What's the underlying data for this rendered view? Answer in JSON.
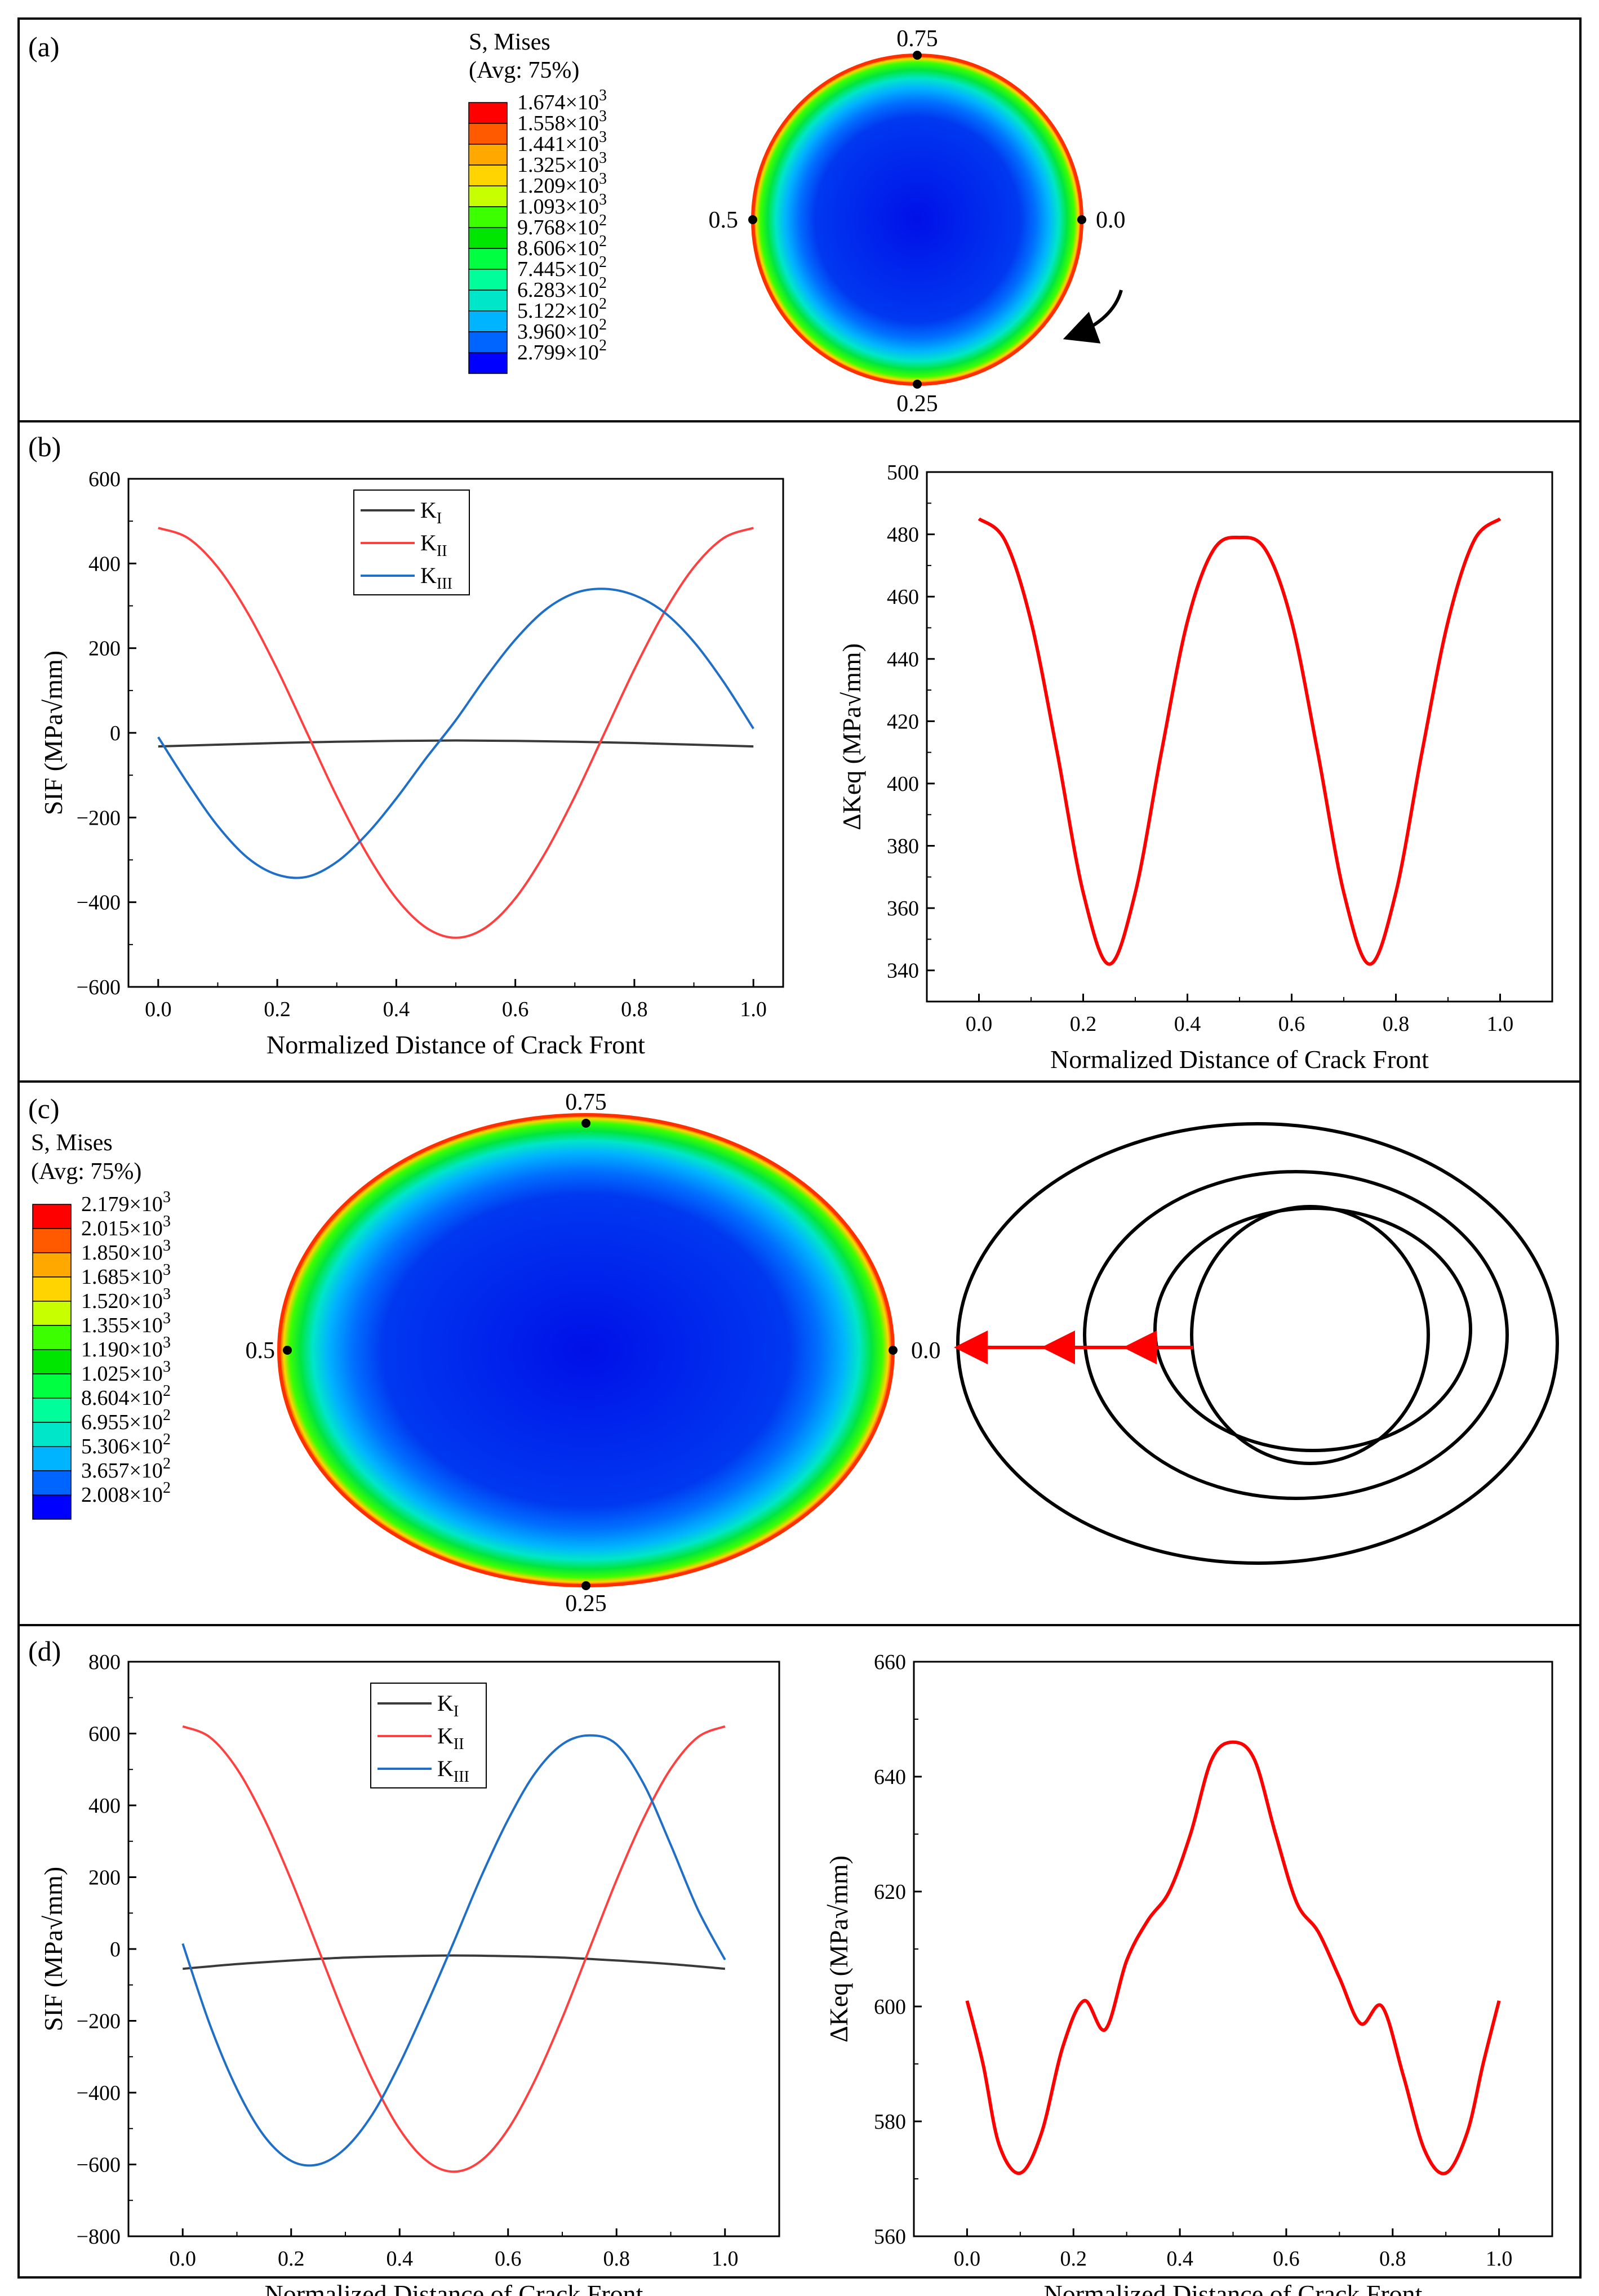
{
  "panels": {
    "a": {
      "label": "(a)",
      "legend_title": [
        "S, Mises",
        "(Avg: 75%)"
      ],
      "legend_colors": [
        "#ff0000",
        "#ff5a00",
        "#ffa800",
        "#ffd400",
        "#c8ff00",
        "#3cff00",
        "#00e600",
        "#00ff40",
        "#00ff9a",
        "#00e6c8",
        "#00b4ff",
        "#0064ff",
        "#0000ff"
      ],
      "legend_values": [
        {
          "m": "1.674",
          "e": "3"
        },
        {
          "m": "1.558",
          "e": "3"
        },
        {
          "m": "1.441",
          "e": "3"
        },
        {
          "m": "1.325",
          "e": "3"
        },
        {
          "m": "1.209",
          "e": "3"
        },
        {
          "m": "1.093",
          "e": "3"
        },
        {
          "m": "9.768",
          "e": "2"
        },
        {
          "m": "8.606",
          "e": "2"
        },
        {
          "m": "7.445",
          "e": "2"
        },
        {
          "m": "6.283",
          "e": "2"
        },
        {
          "m": "5.122",
          "e": "2"
        },
        {
          "m": "3.960",
          "e": "2"
        },
        {
          "m": "2.799",
          "e": "2"
        }
      ],
      "crack_labels": {
        "top": "0.75",
        "left": "0.5",
        "right": "0.0",
        "bottom": "0.25"
      }
    },
    "b": {
      "label": "(b)"
    },
    "c": {
      "label": "(c)",
      "legend_title": [
        "S, Mises",
        "(Avg: 75%)"
      ],
      "legend_colors": [
        "#ff0000",
        "#ff5a00",
        "#ffa800",
        "#ffd400",
        "#c8ff00",
        "#3cff00",
        "#00e600",
        "#00ff40",
        "#00ff9a",
        "#00e6c8",
        "#00b4ff",
        "#0064ff",
        "#0000ff"
      ],
      "legend_values": [
        {
          "m": "2.179",
          "e": "3"
        },
        {
          "m": "2.015",
          "e": "3"
        },
        {
          "m": "1.850",
          "e": "3"
        },
        {
          "m": "1.685",
          "e": "3"
        },
        {
          "m": "1.520",
          "e": "3"
        },
        {
          "m": "1.355",
          "e": "3"
        },
        {
          "m": "1.190",
          "e": "3"
        },
        {
          "m": "1.025",
          "e": "3"
        },
        {
          "m": "8.604",
          "e": "2"
        },
        {
          "m": "6.955",
          "e": "2"
        },
        {
          "m": "5.306",
          "e": "2"
        },
        {
          "m": "3.657",
          "e": "2"
        },
        {
          "m": "2.008",
          "e": "2"
        }
      ],
      "crack_labels": {
        "top": "0.75",
        "left": "0.5",
        "right": "0.0",
        "bottom": "0.25"
      }
    },
    "d": {
      "label": "(d)"
    }
  },
  "chart_data": [
    {
      "id": "b-left",
      "type": "line",
      "xlabel": "Normalized Distance of Crack Front",
      "ylabel": "SIF (MPa√mm)",
      "xlim": [
        -0.05,
        1.05
      ],
      "ylim": [
        -600,
        600
      ],
      "xticks": [
        "0.0",
        "0.2",
        "0.4",
        "0.6",
        "0.8",
        "1.0"
      ],
      "yticks": [
        "-600",
        "-400",
        "-200",
        "0",
        "200",
        "400",
        "600"
      ],
      "series": [
        {
          "name": "KI",
          "sub": "I",
          "color": "#3a3a3a",
          "x": [
            0,
            0.1,
            0.2,
            0.3,
            0.4,
            0.5,
            0.6,
            0.7,
            0.8,
            0.9,
            1.0
          ],
          "y": [
            -32,
            -28,
            -24,
            -21,
            -19,
            -18,
            -19,
            -21,
            -24,
            -28,
            -32
          ]
        },
        {
          "name": "KII",
          "sub": "II",
          "color": "#ff4040",
          "x": [
            0,
            0.05,
            0.1,
            0.15,
            0.2,
            0.25,
            0.3,
            0.35,
            0.4,
            0.45,
            0.5,
            0.55,
            0.6,
            0.65,
            0.7,
            0.75,
            0.8,
            0.85,
            0.9,
            0.95,
            1.0
          ],
          "y": [
            484,
            460,
            391,
            284,
            150,
            0,
            -150,
            -284,
            -391,
            -460,
            -484,
            -460,
            -391,
            -284,
            -150,
            0,
            150,
            284,
            391,
            460,
            484
          ]
        },
        {
          "name": "KIII",
          "sub": "III",
          "color": "#1f6fc8",
          "x": [
            0,
            0.05,
            0.1,
            0.15,
            0.2,
            0.25,
            0.3,
            0.35,
            0.4,
            0.45,
            0.5,
            0.55,
            0.6,
            0.65,
            0.7,
            0.75,
            0.8,
            0.85,
            0.9,
            0.95,
            1.0
          ],
          "y": [
            -10,
            -120,
            -220,
            -295,
            -335,
            -340,
            -305,
            -240,
            -155,
            -60,
            30,
            130,
            220,
            290,
            330,
            340,
            325,
            285,
            215,
            120,
            10
          ]
        }
      ]
    },
    {
      "id": "b-right",
      "type": "line",
      "xlabel": "Normalized Distance of Crack Front",
      "ylabel": "ΔKeq (MPa√mm)",
      "xlim": [
        -0.1,
        1.1
      ],
      "ylim": [
        330,
        500
      ],
      "xticks": [
        "0.0",
        "0.2",
        "0.4",
        "0.6",
        "0.8",
        "1.0"
      ],
      "yticks": [
        "340",
        "360",
        "380",
        "400",
        "420",
        "440",
        "460",
        "480",
        "500"
      ],
      "series": [
        {
          "name": "ΔKeq",
          "color": "#ff0000",
          "x": [
            0,
            0.05,
            0.1,
            0.15,
            0.2,
            0.25,
            0.3,
            0.35,
            0.4,
            0.45,
            0.5,
            0.55,
            0.6,
            0.65,
            0.7,
            0.75,
            0.8,
            0.85,
            0.9,
            0.95,
            1.0
          ],
          "y": [
            485,
            478,
            452,
            410,
            365,
            342,
            365,
            410,
            452,
            475,
            479,
            475,
            452,
            410,
            365,
            342,
            365,
            410,
            452,
            478,
            485
          ]
        }
      ]
    },
    {
      "id": "d-left",
      "type": "line",
      "xlabel": "Normalized Distance of Crack Front",
      "ylabel": "SIF (MPa√mm)",
      "xlim": [
        -0.1,
        1.1
      ],
      "ylim": [
        -800,
        800
      ],
      "xticks": [
        "0.0",
        "0.2",
        "0.4",
        "0.6",
        "0.8",
        "1.0"
      ],
      "yticks": [
        "-800",
        "-600",
        "-400",
        "-200",
        "0",
        "200",
        "400",
        "600",
        "800"
      ],
      "series": [
        {
          "name": "KI",
          "sub": "I",
          "color": "#3a3a3a",
          "x": [
            0,
            0.1,
            0.2,
            0.3,
            0.4,
            0.5,
            0.6,
            0.7,
            0.8,
            0.9,
            1.0
          ],
          "y": [
            -55,
            -42,
            -32,
            -24,
            -20,
            -18,
            -20,
            -24,
            -32,
            -42,
            -55
          ]
        },
        {
          "name": "KII",
          "sub": "II",
          "color": "#ff4040",
          "x": [
            0,
            0.05,
            0.1,
            0.15,
            0.2,
            0.25,
            0.3,
            0.35,
            0.4,
            0.45,
            0.5,
            0.55,
            0.6,
            0.65,
            0.7,
            0.75,
            0.8,
            0.85,
            0.9,
            0.95,
            1.0
          ],
          "y": [
            620,
            590,
            502,
            364,
            192,
            0,
            -192,
            -364,
            -502,
            -590,
            -620,
            -590,
            -502,
            -364,
            -192,
            0,
            192,
            364,
            502,
            590,
            620
          ]
        },
        {
          "name": "KIII",
          "sub": "III",
          "color": "#1f6fc8",
          "x": [
            0,
            0.05,
            0.1,
            0.15,
            0.2,
            0.25,
            0.3,
            0.35,
            0.4,
            0.45,
            0.5,
            0.55,
            0.6,
            0.65,
            0.7,
            0.75,
            0.8,
            0.85,
            0.9,
            0.95,
            1.0
          ],
          "y": [
            15,
            -210,
            -390,
            -520,
            -590,
            -600,
            -555,
            -460,
            -320,
            -155,
            20,
            200,
            360,
            490,
            570,
            595,
            570,
            460,
            290,
            110,
            -30
          ]
        }
      ]
    },
    {
      "id": "d-right",
      "type": "line",
      "xlabel": "Normalized Distance of Crack Front",
      "ylabel": "ΔKeq (MPa√mm)",
      "xlim": [
        -0.1,
        1.1
      ],
      "ylim": [
        560,
        660
      ],
      "xticks": [
        "0.0",
        "0.2",
        "0.4",
        "0.6",
        "0.8",
        "1.0"
      ],
      "yticks": [
        "560",
        "580",
        "600",
        "620",
        "640",
        "660"
      ],
      "series": [
        {
          "name": "ΔKeq",
          "color": "#ff0000",
          "x": [
            0,
            0.03,
            0.06,
            0.1,
            0.14,
            0.18,
            0.22,
            0.26,
            0.3,
            0.34,
            0.38,
            0.42,
            0.46,
            0.5,
            0.54,
            0.58,
            0.62,
            0.66,
            0.7,
            0.74,
            0.78,
            0.82,
            0.86,
            0.9,
            0.94,
            0.97,
            1.0
          ],
          "y": [
            601,
            590,
            576,
            571,
            578,
            593,
            601,
            596,
            608,
            615,
            620,
            630,
            643,
            646,
            643,
            630,
            618,
            613,
            605,
            597,
            600,
            588,
            575,
            571,
            578,
            590,
            601
          ]
        }
      ]
    }
  ]
}
